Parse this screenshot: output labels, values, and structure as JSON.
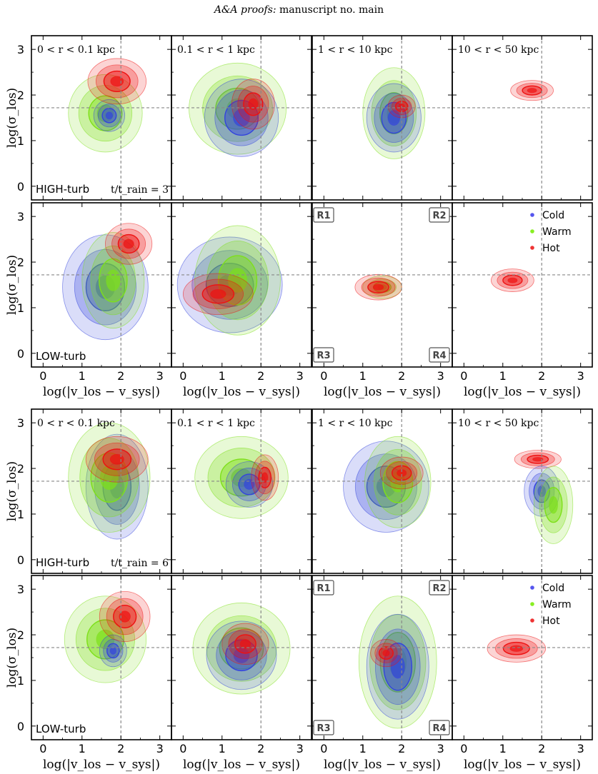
{
  "header": {
    "italic": "A&A proofs:",
    "rest": " manuscript no. main"
  },
  "axes": {
    "xlabel": "log(|v_los − v_sys|)",
    "ylabel": "log(σ_los)",
    "xticks": [
      "0",
      "1",
      "2",
      "3"
    ],
    "yticks": [
      "0",
      "1",
      "2",
      "3"
    ],
    "xlim": [
      -0.3,
      3.3
    ],
    "ylim": [
      -0.3,
      3.3
    ],
    "ref_lines": {
      "x": 2.0,
      "y": 1.72
    }
  },
  "columns": [
    "0 < r < 0.1 kpc",
    "0.1 < r < 1 kpc",
    "1 < r < 10 kpc",
    "10 < r < 50 kpc"
  ],
  "rows": [
    {
      "label": "HIGH-turb",
      "time": "t/t_rain = 3",
      "show_cols": true,
      "show_regions": false
    },
    {
      "label": "LOW-turb",
      "time": "",
      "show_cols": false,
      "show_regions": true
    },
    {
      "label": "HIGH-turb",
      "time": "t/t_rain = 6",
      "show_cols": true,
      "show_regions": false
    },
    {
      "label": "LOW-turb",
      "time": "",
      "show_cols": false,
      "show_regions": true
    }
  ],
  "regions": [
    "R1",
    "R2",
    "R3",
    "R4"
  ],
  "legend": {
    "placement": "top-right",
    "entries": [
      {
        "label": "Cold",
        "color": "#5555ee"
      },
      {
        "label": "Warm",
        "color": "#88ee22"
      },
      {
        "label": "Hot",
        "color": "#ee3333"
      }
    ]
  },
  "colors": {
    "Cold": "#3344dd",
    "Warm": "#7ee01a",
    "Hot": "#ee1111"
  },
  "chart_data": {
    "type": "contour",
    "description_of_values": "blobs: center x,y and half-widths rx,ry in log units",
    "panels": [
      [
        [
          {
            "phase": "Warm",
            "cx": 1.6,
            "cy": 1.6,
            "rx": 0.95,
            "ry": 0.85
          },
          {
            "phase": "Cold",
            "cx": 1.7,
            "cy": 1.55,
            "rx": 0.4,
            "ry": 0.35
          },
          {
            "phase": "Hot",
            "cx": 1.9,
            "cy": 2.3,
            "rx": 0.75,
            "ry": 0.5
          }
        ],
        [
          {
            "phase": "Warm",
            "cx": 1.4,
            "cy": 1.7,
            "rx": 1.25,
            "ry": 1.0
          },
          {
            "phase": "Cold",
            "cx": 1.5,
            "cy": 1.5,
            "rx": 0.95,
            "ry": 0.85
          },
          {
            "phase": "Hot",
            "cx": 1.8,
            "cy": 1.8,
            "rx": 0.55,
            "ry": 0.55
          }
        ],
        [
          {
            "phase": "Warm",
            "cx": 1.8,
            "cy": 1.6,
            "rx": 0.8,
            "ry": 1.0
          },
          {
            "phase": "Cold",
            "cx": 1.8,
            "cy": 1.5,
            "rx": 0.7,
            "ry": 0.75
          },
          {
            "phase": "Hot",
            "cx": 2.0,
            "cy": 1.75,
            "rx": 0.35,
            "ry": 0.25
          }
        ],
        [
          {
            "phase": "Hot",
            "cx": 1.75,
            "cy": 2.1,
            "rx": 0.55,
            "ry": 0.22
          }
        ]
      ],
      [
        [
          {
            "phase": "Cold",
            "cx": 1.6,
            "cy": 1.45,
            "rx": 1.1,
            "ry": 1.15
          },
          {
            "phase": "Warm",
            "cx": 1.8,
            "cy": 1.6,
            "rx": 0.8,
            "ry": 1.05
          },
          {
            "phase": "Hot",
            "cx": 2.2,
            "cy": 2.4,
            "rx": 0.6,
            "ry": 0.45
          }
        ],
        [
          {
            "phase": "Cold",
            "cx": 1.2,
            "cy": 1.5,
            "rx": 1.35,
            "ry": 1.05
          },
          {
            "phase": "Warm",
            "cx": 1.4,
            "cy": 1.6,
            "rx": 1.1,
            "ry": 1.2
          },
          {
            "phase": "Hot",
            "cx": 0.9,
            "cy": 1.3,
            "rx": 0.9,
            "ry": 0.45
          }
        ],
        [
          {
            "phase": "Warm",
            "cx": 1.5,
            "cy": 1.45,
            "rx": 0.5,
            "ry": 0.25
          },
          {
            "phase": "Hot",
            "cx": 1.4,
            "cy": 1.45,
            "rx": 0.6,
            "ry": 0.28
          }
        ],
        [
          {
            "phase": "Hot",
            "cx": 1.25,
            "cy": 1.6,
            "rx": 0.55,
            "ry": 0.25
          }
        ]
      ],
      [
        [
          {
            "phase": "Cold",
            "cx": 1.9,
            "cy": 1.6,
            "rx": 0.8,
            "ry": 1.15
          },
          {
            "phase": "Warm",
            "cx": 1.7,
            "cy": 1.8,
            "rx": 1.05,
            "ry": 1.2
          },
          {
            "phase": "Hot",
            "cx": 1.9,
            "cy": 2.2,
            "rx": 0.8,
            "ry": 0.5
          }
        ],
        [
          {
            "phase": "Warm",
            "cx": 1.5,
            "cy": 1.8,
            "rx": 1.2,
            "ry": 0.9
          },
          {
            "phase": "Cold",
            "cx": 1.7,
            "cy": 1.65,
            "rx": 0.6,
            "ry": 0.5
          },
          {
            "phase": "Hot",
            "cx": 2.1,
            "cy": 1.8,
            "rx": 0.35,
            "ry": 0.5
          }
        ],
        [
          {
            "phase": "Cold",
            "cx": 1.6,
            "cy": 1.6,
            "rx": 1.1,
            "ry": 1.0
          },
          {
            "phase": "Warm",
            "cx": 1.9,
            "cy": 1.7,
            "rx": 0.85,
            "ry": 1.0
          },
          {
            "phase": "Hot",
            "cx": 2.0,
            "cy": 1.9,
            "rx": 0.55,
            "ry": 0.35
          }
        ],
        [
          {
            "phase": "Hot",
            "cx": 1.9,
            "cy": 2.2,
            "rx": 0.6,
            "ry": 0.2
          },
          {
            "phase": "Cold",
            "cx": 2.0,
            "cy": 1.5,
            "rx": 0.45,
            "ry": 0.55
          },
          {
            "phase": "Warm",
            "cx": 2.3,
            "cy": 1.2,
            "rx": 0.5,
            "ry": 0.85
          }
        ]
      ],
      [
        [
          {
            "phase": "Warm",
            "cx": 1.6,
            "cy": 1.9,
            "rx": 1.05,
            "ry": 0.95
          },
          {
            "phase": "Cold",
            "cx": 1.8,
            "cy": 1.65,
            "rx": 0.35,
            "ry": 0.35
          },
          {
            "phase": "Hot",
            "cx": 2.1,
            "cy": 2.4,
            "rx": 0.65,
            "ry": 0.55
          }
        ],
        [
          {
            "phase": "Warm",
            "cx": 1.5,
            "cy": 1.7,
            "rx": 1.25,
            "ry": 1.0
          },
          {
            "phase": "Cold",
            "cx": 1.5,
            "cy": 1.55,
            "rx": 0.9,
            "ry": 0.75
          },
          {
            "phase": "Hot",
            "cx": 1.6,
            "cy": 1.8,
            "rx": 0.6,
            "ry": 0.45
          }
        ],
        [
          {
            "phase": "Warm",
            "cx": 1.9,
            "cy": 1.4,
            "rx": 1.0,
            "ry": 1.45
          },
          {
            "phase": "Cold",
            "cx": 1.9,
            "cy": 1.3,
            "rx": 0.8,
            "ry": 1.15
          },
          {
            "phase": "Hot",
            "cx": 1.6,
            "cy": 1.6,
            "rx": 0.4,
            "ry": 0.3
          }
        ],
        [
          {
            "phase": "Hot",
            "cx": 1.35,
            "cy": 1.7,
            "rx": 0.75,
            "ry": 0.3
          }
        ]
      ]
    ]
  }
}
